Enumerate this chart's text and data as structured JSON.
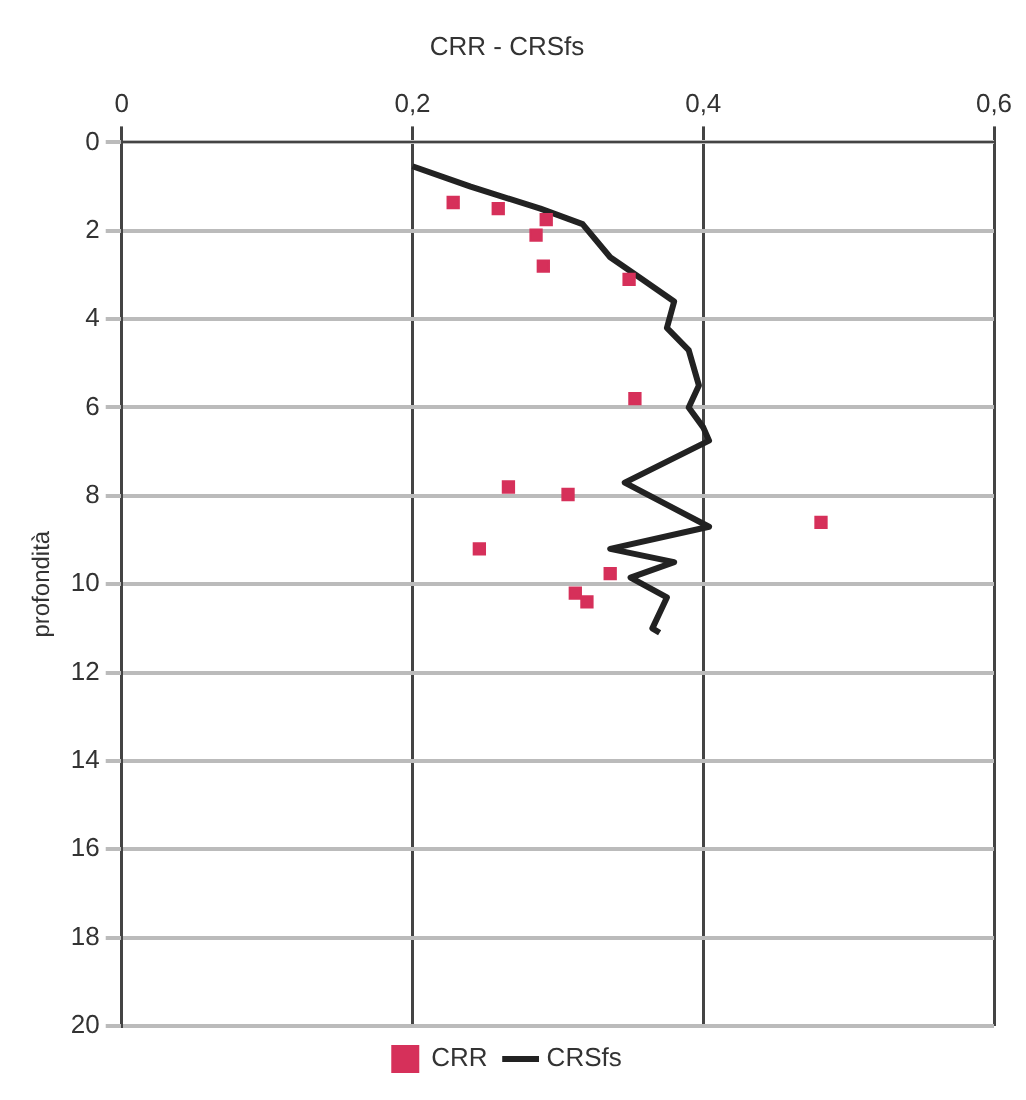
{
  "chart_data": {
    "type": "scatter",
    "title": "CRR - CRSfs",
    "ylabel": "profondità",
    "xlim": [
      0,
      0.6
    ],
    "xticks": [
      0,
      {
        "value": 0.2,
        "label": "0,2"
      },
      {
        "value": 0.4,
        "label": "0,4"
      },
      {
        "value": 0.6,
        "label": "0,6"
      }
    ],
    "ylim": [
      20,
      0
    ],
    "yticks": [
      0,
      2,
      4,
      6,
      8,
      10,
      12,
      14,
      16,
      18,
      20
    ],
    "grid": true,
    "legend": "bottom",
    "series": [
      {
        "name": "CRR",
        "color": "#d6305a",
        "marker": "square",
        "x": [
          0.228,
          0.259,
          0.292,
          0.285,
          0.29,
          0.349,
          0.353,
          0.266,
          0.307,
          0.481,
          0.246,
          0.336,
          0.312,
          0.32
        ],
        "values": [
          1.36,
          1.5,
          1.75,
          2.1,
          2.8,
          3.1,
          5.8,
          7.8,
          7.97,
          8.6,
          9.2,
          9.76,
          10.2,
          10.4
        ]
      },
      {
        "name": "CRSfs",
        "type": "line",
        "color": "#222222",
        "marker": "none",
        "x": [
          0.2,
          0.24,
          0.288,
          0.317,
          0.336,
          0.356,
          0.38,
          0.375,
          0.39,
          0.397,
          0.39,
          0.4,
          0.404,
          0.346,
          0.404,
          0.336,
          0.38,
          0.35,
          0.375,
          0.365,
          0.37
        ],
        "values": [
          0.54,
          1.0,
          1.5,
          1.85,
          2.6,
          3.05,
          3.6,
          4.2,
          4.7,
          5.5,
          6.0,
          6.45,
          6.75,
          7.7,
          8.7,
          9.2,
          9.5,
          9.85,
          10.3,
          11.0,
          11.1
        ]
      }
    ]
  }
}
